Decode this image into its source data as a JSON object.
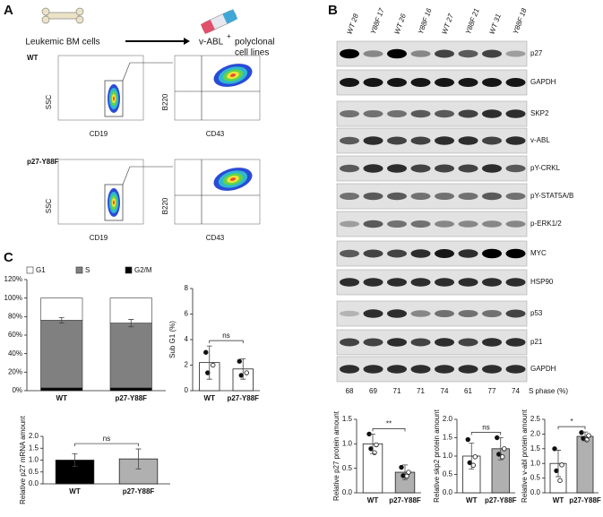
{
  "panel_labels": [
    "A",
    "B",
    "C"
  ],
  "panel_a": {
    "source": "Leukemic BM cells",
    "target": "v-ABL",
    "target_sup": "+",
    "target_rest": "polyclonal",
    "target_line2": "cell lines",
    "rows": [
      {
        "label": "WT",
        "axes": [
          "SSC",
          "CD19",
          "B220",
          "CD43"
        ]
      },
      {
        "label": "p27-Y88F",
        "axes": [
          "SSC",
          "CD19",
          "B220",
          "CD43"
        ]
      }
    ]
  },
  "panel_b": {
    "lanes": [
      "WT 28",
      "Y88F 17",
      "WT 26",
      "Y88F 16",
      "WT 27",
      "Y88F 21",
      "WT 31",
      "Y88F 18"
    ],
    "blots": [
      "p27",
      "GAPDH",
      "SKP2",
      "v-ABL",
      "pY-CRKL",
      "pY-STAT5A/B",
      "p-ERK1/2",
      "MYC",
      "HSP90",
      "p53",
      "p21",
      "GAPDH"
    ],
    "s_phase": [
      68,
      69,
      71,
      71,
      74,
      61,
      77,
      74
    ],
    "s_phase_label": "S phase (%)"
  },
  "chart_data": [
    {
      "type": "stacked_bar",
      "categories": [
        "WT",
        "p27-Y88F"
      ],
      "series": [
        {
          "name": "G2/M",
          "color": "#000000",
          "values": [
            3,
            3
          ]
        },
        {
          "name": "S",
          "color": "#808080",
          "values": [
            73,
            70
          ]
        },
        {
          "name": "G1",
          "color": "#ffffff",
          "values": [
            24,
            27
          ]
        }
      ],
      "errors": [
        3,
        4
      ],
      "ylim": [
        0,
        120
      ],
      "yticks": [
        {
          "value": 0,
          "label": "0%"
        },
        {
          "value": 20,
          "label": "20%"
        },
        {
          "value": 40,
          "label": "40%"
        },
        {
          "value": 60,
          "label": "60%"
        },
        {
          "value": 80,
          "label": "80%"
        },
        {
          "value": 100,
          "label": "100%"
        },
        {
          "value": 120,
          "label": "120%"
        }
      ]
    },
    {
      "type": "bar",
      "ylabel": "Sub G1 (%)",
      "categories": [
        "WT",
        "p27-Y88F"
      ],
      "values": [
        2.2,
        1.7
      ],
      "errors": [
        1.3,
        0.8
      ],
      "colors": [
        "#ffffff",
        "#ffffff"
      ],
      "points": [
        [
          3.0,
          2.0,
          1.4
        ],
        [
          2.3,
          1.4,
          1.2
        ]
      ],
      "annotation": "ns",
      "ylim": [
        0,
        8
      ],
      "yticks": [
        0,
        2,
        4,
        6,
        8
      ]
    },
    {
      "type": "bar",
      "ylabel": "Relative p27 mRNA amount",
      "categories": [
        "WT",
        "p27-Y88F"
      ],
      "values": [
        1.0,
        1.05
      ],
      "errors": [
        0.27,
        0.42
      ],
      "colors": [
        "#000000",
        "#b0b0b0"
      ],
      "annotation": "ns",
      "ylim": [
        0,
        2
      ],
      "yticks": [
        {
          "value": 0,
          "label": "0.0"
        },
        {
          "value": 0.5,
          "label": "0.5"
        },
        {
          "value": 1,
          "label": "1.0"
        },
        {
          "value": 1.5,
          "label": "1.5"
        },
        {
          "value": 2,
          "label": "2.0"
        }
      ]
    },
    {
      "type": "bar",
      "ylabel": "Relative p27 protein amount",
      "categories": [
        "WT",
        "p27-Y88F"
      ],
      "values": [
        1.0,
        0.42
      ],
      "errors": [
        0.2,
        0.15
      ],
      "colors": [
        "#ffffff",
        "#b0b0b0"
      ],
      "points": [
        [
          1.2,
          0.98,
          0.9,
          0.82
        ],
        [
          0.52,
          0.42,
          0.35,
          0.34
        ]
      ],
      "annotation": "**",
      "ylim": [
        0,
        1.5
      ],
      "yticks": [
        {
          "value": 0,
          "label": "0.0"
        },
        {
          "value": 0.5,
          "label": "0.5"
        },
        {
          "value": 1,
          "label": "1.0"
        },
        {
          "value": 1.5,
          "label": "1.5"
        }
      ]
    },
    {
      "type": "bar",
      "ylabel": "Relative skp2 protein amount",
      "categories": [
        "WT",
        "p27-Y88F"
      ],
      "values": [
        1.0,
        1.2
      ],
      "errors": [
        0.35,
        0.3
      ],
      "colors": [
        "#ffffff",
        "#b0b0b0"
      ],
      "points": [
        [
          1.45,
          0.98,
          0.82,
          0.75
        ],
        [
          1.5,
          1.2,
          1.05,
          0.98
        ]
      ],
      "annotation": "ns",
      "ylim": [
        0,
        2
      ],
      "yticks": [
        {
          "value": 0,
          "label": "0.0"
        },
        {
          "value": 0.5,
          "label": "0.5"
        },
        {
          "value": 1,
          "label": "1.0"
        },
        {
          "value": 1.5,
          "label": "1.5"
        },
        {
          "value": 2,
          "label": "2.0"
        }
      ]
    },
    {
      "type": "bar",
      "ylabel": "Relative v-abl protein amount",
      "categories": [
        "WT",
        "p27-Y88F"
      ],
      "values": [
        1.0,
        1.92
      ],
      "errors": [
        0.45,
        0.15
      ],
      "colors": [
        "#ffffff",
        "#b0b0b0"
      ],
      "points": [
        [
          1.5,
          0.95,
          0.75,
          0.42
        ],
        [
          2.05,
          1.95,
          1.85,
          1.8
        ]
      ],
      "annotation": "*",
      "ylim": [
        0,
        2.5
      ],
      "yticks": [
        {
          "value": 0,
          "label": "0.0"
        },
        {
          "value": 0.5,
          "label": "0.5"
        },
        {
          "value": 1,
          "label": "1.0"
        },
        {
          "value": 1.5,
          "label": "1.5"
        },
        {
          "value": 2,
          "label": "2.0"
        },
        {
          "value": 2.5,
          "label": "2.5"
        }
      ]
    }
  ]
}
